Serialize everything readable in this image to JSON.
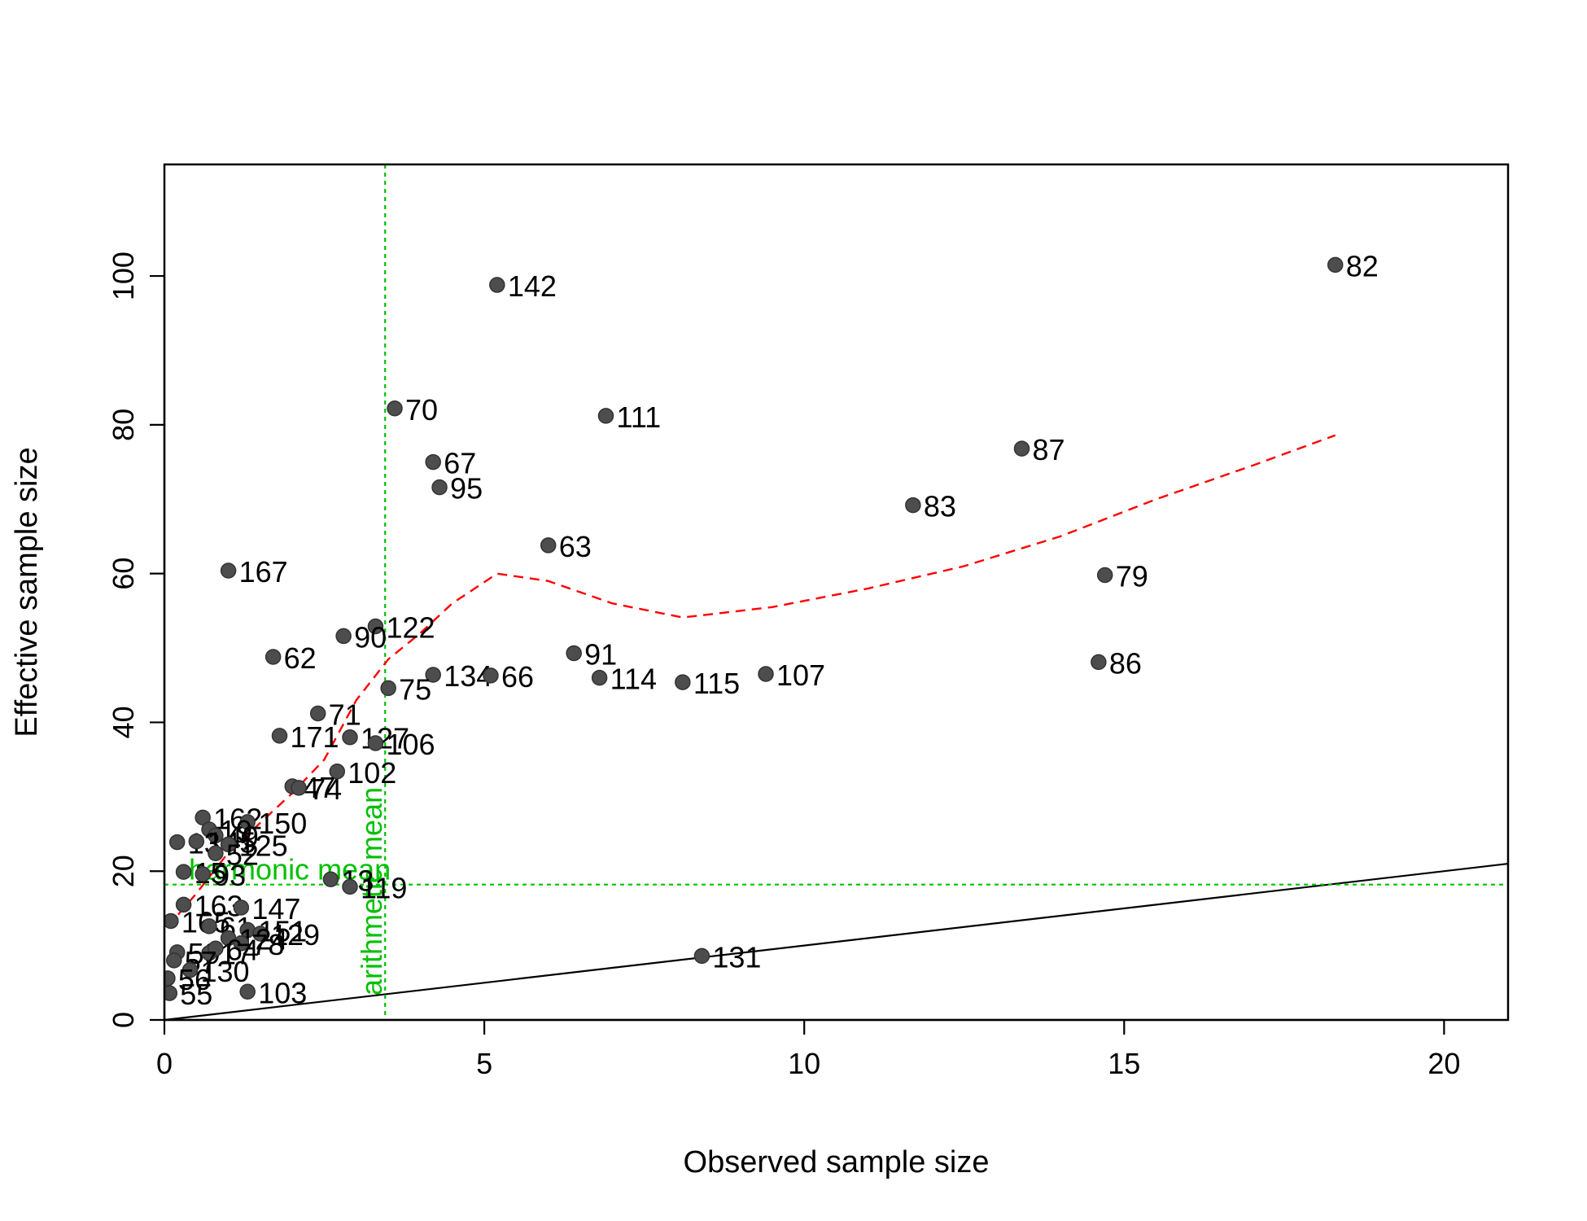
{
  "chart_data": {
    "type": "scatter",
    "title": "",
    "xlabel": "Observed sample size",
    "ylabel": "Effective sample size",
    "xlim": [
      0,
      21
    ],
    "ylim": [
      0,
      115
    ],
    "x_ticks": [
      0,
      5,
      10,
      15,
      20
    ],
    "y_ticks": [
      0,
      20,
      40,
      60,
      80,
      100
    ],
    "grid": false,
    "colors": {
      "points": "#4d4d4d",
      "trend": "#ff0000",
      "reference_lines": "#00c000",
      "identity_line": "#000000"
    },
    "points": [
      {
        "x": 18.3,
        "y": 101.5,
        "label": "82"
      },
      {
        "x": 5.2,
        "y": 98.8,
        "label": "142"
      },
      {
        "x": 3.6,
        "y": 82.2,
        "label": "70"
      },
      {
        "x": 6.9,
        "y": 81.2,
        "label": "111"
      },
      {
        "x": 13.4,
        "y": 76.8,
        "label": "87"
      },
      {
        "x": 4.2,
        "y": 75.0,
        "label": "67"
      },
      {
        "x": 4.3,
        "y": 71.6,
        "label": "95"
      },
      {
        "x": 11.7,
        "y": 69.2,
        "label": "83"
      },
      {
        "x": 6.0,
        "y": 63.8,
        "label": "63"
      },
      {
        "x": 1.0,
        "y": 60.4,
        "label": "167"
      },
      {
        "x": 14.7,
        "y": 59.8,
        "label": "79"
      },
      {
        "x": 3.3,
        "y": 52.9,
        "label": "122"
      },
      {
        "x": 2.8,
        "y": 51.6,
        "label": "90"
      },
      {
        "x": 6.4,
        "y": 49.3,
        "label": "91"
      },
      {
        "x": 1.7,
        "y": 48.8,
        "label": "62"
      },
      {
        "x": 14.6,
        "y": 48.1,
        "label": "86"
      },
      {
        "x": 9.4,
        "y": 46.5,
        "label": "107"
      },
      {
        "x": 4.2,
        "y": 46.4,
        "label": "134"
      },
      {
        "x": 5.1,
        "y": 46.3,
        "label": "66"
      },
      {
        "x": 6.8,
        "y": 46.0,
        "label": "114"
      },
      {
        "x": 8.1,
        "y": 45.4,
        "label": "115"
      },
      {
        "x": 3.5,
        "y": 44.6,
        "label": "75"
      },
      {
        "x": 2.4,
        "y": 41.2,
        "label": "71"
      },
      {
        "x": 1.8,
        "y": 38.2,
        "label": "171"
      },
      {
        "x": 2.9,
        "y": 38.0,
        "label": "127"
      },
      {
        "x": 3.3,
        "y": 37.2,
        "label": "106"
      },
      {
        "x": 2.7,
        "y": 33.4,
        "label": "102"
      },
      {
        "x": 2.0,
        "y": 31.4,
        "label": "47"
      },
      {
        "x": 2.1,
        "y": 31.2,
        "label": "74"
      },
      {
        "x": 0.6,
        "y": 27.2,
        "label": "162"
      },
      {
        "x": 1.3,
        "y": 26.6,
        "label": "150"
      },
      {
        "x": 0.7,
        "y": 25.6,
        "label": "19"
      },
      {
        "x": 0.8,
        "y": 24.8,
        "label": "49"
      },
      {
        "x": 0.2,
        "y": 23.9,
        "label": "13"
      },
      {
        "x": 0.5,
        "y": 24.0,
        "label": "145"
      },
      {
        "x": 1.0,
        "y": 23.6,
        "label": "125"
      },
      {
        "x": 0.8,
        "y": 22.4,
        "label": "52"
      },
      {
        "x": 0.3,
        "y": 19.9,
        "label": "15"
      },
      {
        "x": 0.6,
        "y": 19.6,
        "label": "93"
      },
      {
        "x": 2.6,
        "y": 18.9,
        "label": "13"
      },
      {
        "x": 2.9,
        "y": 17.9,
        "label": "119"
      },
      {
        "x": 0.3,
        "y": 15.5,
        "label": "163"
      },
      {
        "x": 1.2,
        "y": 15.1,
        "label": "147"
      },
      {
        "x": 0.1,
        "y": 13.3,
        "label": "165"
      },
      {
        "x": 0.7,
        "y": 12.6,
        "label": "61"
      },
      {
        "x": 1.3,
        "y": 12.1,
        "label": "151"
      },
      {
        "x": 1.5,
        "y": 11.6,
        "label": "129"
      },
      {
        "x": 1.0,
        "y": 11.0,
        "label": "124"
      },
      {
        "x": 1.2,
        "y": 10.3,
        "label": "78"
      },
      {
        "x": 0.2,
        "y": 9.1,
        "label": "59"
      },
      {
        "x": 0.7,
        "y": 9.0,
        "label": "17"
      },
      {
        "x": 0.8,
        "y": 9.6,
        "label": "64"
      },
      {
        "x": 0.15,
        "y": 8.0,
        "label": "57"
      },
      {
        "x": 0.4,
        "y": 6.7,
        "label": "130"
      },
      {
        "x": 0.05,
        "y": 5.6,
        "label": "56"
      },
      {
        "x": 0.08,
        "y": 3.6,
        "label": "55"
      },
      {
        "x": 1.3,
        "y": 3.8,
        "label": "103"
      },
      {
        "x": 8.4,
        "y": 8.6,
        "label": "131"
      }
    ],
    "trend_line": {
      "style": "dashed",
      "x": [
        0.05,
        0.5,
        1.0,
        1.5,
        2.0,
        2.5,
        3.0,
        3.5,
        4.0,
        4.5,
        5.2,
        6.0,
        7.0,
        8.1,
        9.5,
        11.0,
        12.5,
        14.0,
        15.5,
        17.0,
        18.3
      ],
      "y": [
        12.5,
        17.0,
        22.5,
        26.5,
        30.5,
        35.0,
        43.0,
        48.5,
        52.0,
        56.0,
        60.0,
        59.0,
        56.0,
        54.1,
        55.5,
        58.0,
        61.0,
        65.0,
        70.0,
        74.5,
        78.6
      ]
    },
    "identity_line": {
      "from": [
        0,
        0
      ],
      "to": [
        21,
        21
      ]
    },
    "reference_lines": [
      {
        "orientation": "vertical",
        "value": 3.45,
        "label": "arithmetic mean",
        "style": "dotted"
      },
      {
        "orientation": "horizontal",
        "value": 18.2,
        "label": "harmonic mean",
        "style": "dotted"
      }
    ]
  }
}
